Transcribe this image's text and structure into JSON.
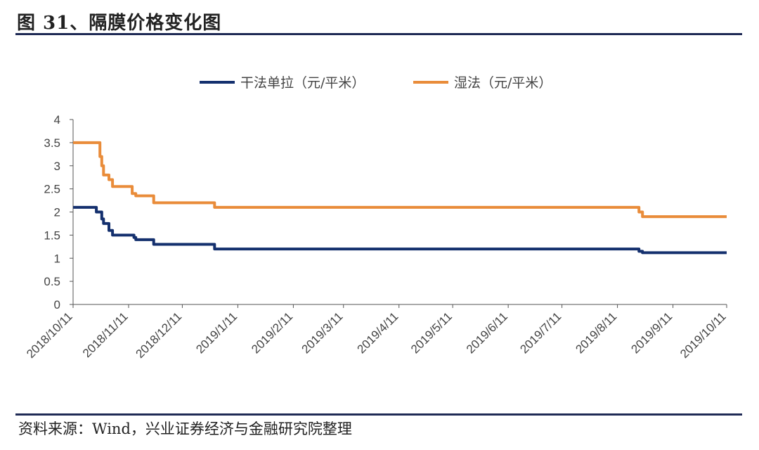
{
  "header": {
    "title": "图 31、隔膜价格变化图"
  },
  "footer": {
    "source": "资料来源：Wind，兴业证券经济与金融研究院整理"
  },
  "colors": {
    "rule": "#1f2a55",
    "dry": "#14306e",
    "wet": "#e98c3a",
    "axis": "#555555"
  },
  "chart_data": {
    "type": "line",
    "title": "",
    "xlabel": "",
    "ylabel": "",
    "ylim": [
      0,
      4
    ],
    "yticks": [
      "0",
      "0.5",
      "1",
      "1.5",
      "2",
      "2.5",
      "3",
      "3.5",
      "4"
    ],
    "xlim": [
      "2018-10-11",
      "2019-10-11"
    ],
    "xticks": [
      "2018/10/11",
      "2018/11/11",
      "2018/12/11",
      "2019/1/11",
      "2019/2/11",
      "2019/3/11",
      "2019/4/11",
      "2019/5/11",
      "2019/6/11",
      "2019/7/11",
      "2019/8/11",
      "2019/9/11",
      "2019/10/11"
    ],
    "grid": false,
    "legend_position": "top",
    "step": true,
    "series": [
      {
        "name": "干法单拉（元/平米）",
        "color": "#14306e",
        "points": [
          [
            "2018-10-11",
            2.1
          ],
          [
            "2018-10-24",
            2.0
          ],
          [
            "2018-10-27",
            1.85
          ],
          [
            "2018-10-28",
            1.75
          ],
          [
            "2018-10-31",
            1.6
          ],
          [
            "2018-11-02",
            1.5
          ],
          [
            "2018-11-11",
            1.5
          ],
          [
            "2018-11-14",
            1.45
          ],
          [
            "2018-11-15",
            1.4
          ],
          [
            "2018-11-24",
            1.4
          ],
          [
            "2018-11-25",
            1.3
          ],
          [
            "2018-12-28",
            1.3
          ],
          [
            "2018-12-29",
            1.2
          ],
          [
            "2019-08-21",
            1.2
          ],
          [
            "2019-08-23",
            1.15
          ],
          [
            "2019-08-25",
            1.12
          ],
          [
            "2019-10-11",
            1.12
          ]
        ]
      },
      {
        "name": "湿法（元/平米）",
        "color": "#e98c3a",
        "points": [
          [
            "2018-10-11",
            3.5
          ],
          [
            "2018-10-24",
            3.5
          ],
          [
            "2018-10-26",
            3.2
          ],
          [
            "2018-10-27",
            3.0
          ],
          [
            "2018-10-28",
            2.8
          ],
          [
            "2018-10-31",
            2.7
          ],
          [
            "2018-11-02",
            2.55
          ],
          [
            "2018-11-11",
            2.55
          ],
          [
            "2018-11-13",
            2.4
          ],
          [
            "2018-11-15",
            2.35
          ],
          [
            "2018-11-24",
            2.35
          ],
          [
            "2018-11-25",
            2.2
          ],
          [
            "2018-12-28",
            2.2
          ],
          [
            "2018-12-29",
            2.1
          ],
          [
            "2019-08-21",
            2.1
          ],
          [
            "2019-08-23",
            2.0
          ],
          [
            "2019-08-25",
            1.9
          ],
          [
            "2019-10-11",
            1.9
          ]
        ]
      }
    ]
  }
}
